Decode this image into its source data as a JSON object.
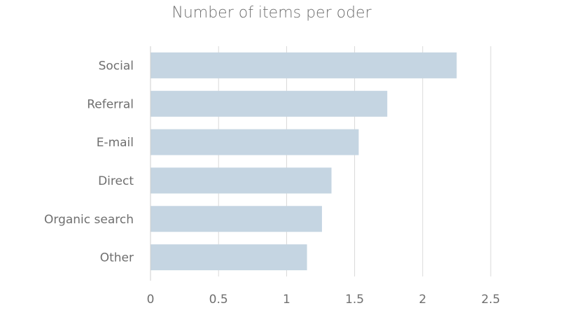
{
  "chart_data": {
    "type": "bar",
    "orientation": "horizontal",
    "title": "Number of items per oder",
    "xlabel": "",
    "ylabel": "",
    "categories": [
      "Social",
      "Referral",
      "E-mail",
      "Direct",
      "Organic search",
      "Other"
    ],
    "values": [
      2.25,
      1.74,
      1.53,
      1.33,
      1.26,
      1.15
    ],
    "xlim": [
      0,
      2.5
    ],
    "xticks": [
      "0",
      "0.5",
      "1",
      "1.5",
      "2",
      "2.5"
    ],
    "xtick_values": [
      0,
      0.5,
      1,
      1.5,
      2,
      2.5
    ],
    "grid": true,
    "legend": "none",
    "colors": {
      "bar": "#c5d5e2",
      "grid": "#d9d9d9",
      "axis": "#cfcfcf",
      "label": "#6f6f6f"
    }
  }
}
